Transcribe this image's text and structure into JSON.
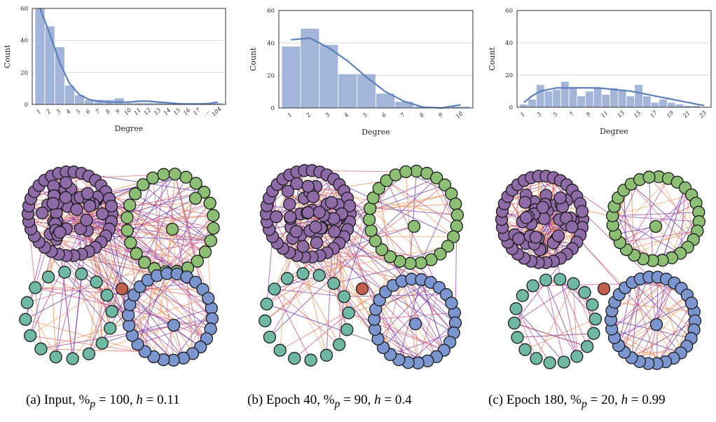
{
  "chart_data": [
    {
      "type": "bar",
      "panel": "a",
      "ylabel": "Count",
      "xlabel": "Degree",
      "ylim": [
        0,
        60
      ],
      "yticks": [
        "0",
        "20",
        "40",
        "60"
      ],
      "categories": [
        "1",
        "2",
        "3",
        "4",
        "5",
        "6",
        "7",
        "8",
        "9",
        "10",
        "11",
        "12",
        "13",
        "14",
        "15",
        "16",
        "17",
        "...",
        "104"
      ],
      "values": [
        60,
        49,
        36,
        12,
        6,
        3,
        3,
        3,
        4,
        1,
        1,
        1,
        1,
        1,
        1,
        1,
        1,
        1,
        1
      ],
      "kde": [
        60,
        44,
        26,
        13,
        6,
        3,
        2,
        1.5,
        1.5,
        1.5,
        2,
        2,
        1.5,
        1,
        0.5,
        0.3,
        0.3,
        0.5,
        1.5
      ],
      "grid": true
    },
    {
      "type": "bar",
      "panel": "b",
      "ylabel": "Count",
      "xlabel": "Degree",
      "ylim": [
        0,
        60
      ],
      "yticks": [
        "0",
        "20",
        "40",
        "60"
      ],
      "categories": [
        "1",
        "2",
        "3",
        "4",
        "5",
        "6",
        "7",
        "8",
        "9",
        "10"
      ],
      "values": [
        38,
        49,
        39,
        21,
        21,
        9,
        4,
        1,
        0,
        1
      ],
      "kde": [
        42,
        43,
        37,
        29,
        19,
        10,
        4,
        0.5,
        0,
        2
      ],
      "grid": true
    },
    {
      "type": "bar",
      "panel": "c",
      "ylabel": "Count",
      "xlabel": "Degree",
      "ylim": [
        0,
        60
      ],
      "yticks": [
        "0",
        "20",
        "40",
        "60"
      ],
      "categories": [
        "1",
        "2",
        "3",
        "4",
        "5",
        "6",
        "7",
        "8",
        "9",
        "10",
        "11",
        "12",
        "13",
        "14",
        "15",
        "16",
        "17",
        "18",
        "19",
        "20",
        "21",
        "22",
        "23"
      ],
      "ticklabels": [
        "1",
        "3",
        "5",
        "7",
        "9",
        "11",
        "13",
        "15",
        "17",
        "19",
        "21",
        "23"
      ],
      "values": [
        2,
        5,
        14,
        10,
        11,
        16,
        12,
        7,
        10,
        12,
        8,
        12,
        11,
        7,
        14,
        7,
        3,
        5,
        3,
        2,
        1,
        1,
        0
      ],
      "kde": [
        3,
        7,
        10,
        11,
        12,
        12,
        12,
        12,
        12,
        12,
        11.5,
        11,
        10.5,
        10,
        9,
        8,
        7,
        6,
        5,
        4,
        3,
        2,
        1
      ],
      "grid": true
    }
  ],
  "captions": [
    {
      "label": "(a) Input, ",
      "math": "%",
      "sub": "p",
      "rest1": " = 100, ",
      "h": "h",
      "rest2": " = 0.11"
    },
    {
      "label": "(b) Epoch 40, ",
      "math": "%",
      "sub": "p",
      "rest1": " = 90, ",
      "h": "h",
      "rest2": " = 0.4"
    },
    {
      "label": "(c) Epoch 180, ",
      "math": "%",
      "sub": "p",
      "rest1": " = 20, ",
      "h": "h",
      "rest2": " = 0.99"
    }
  ],
  "colors": {
    "bar": "#a3b6d9",
    "kde": "#5b7fba",
    "purple": "#8e6aa6",
    "green": "#8cbf74",
    "teal": "#6fb9a4",
    "blue": "#7b95cf",
    "red": "#c0604f"
  }
}
